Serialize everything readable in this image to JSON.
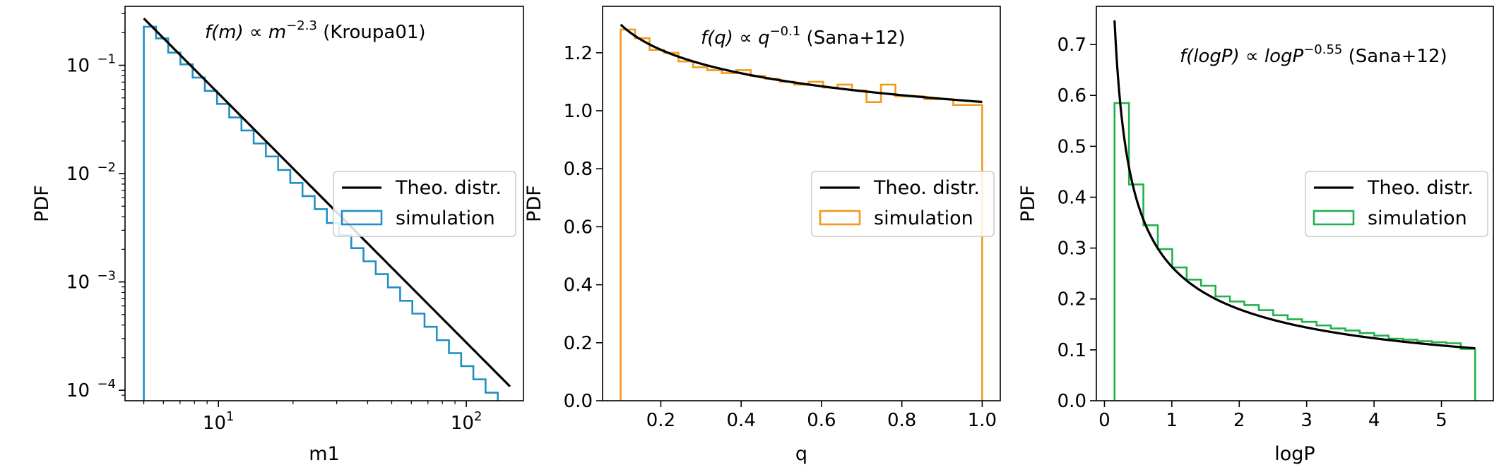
{
  "colors": {
    "theory": "#000000",
    "sim1": "#1f8fc4",
    "sim2": "#f39a1c",
    "sim3": "#22b14c"
  },
  "chart_data": [
    {
      "type": "line",
      "panel": "left",
      "title": "",
      "annotation": {
        "func": "f(m)",
        "prop": " ∝ ",
        "base": "m",
        "exp": "−2.3",
        "tail": " (Kroupa01)"
      },
      "xlabel": "m1",
      "ylabel": "PDF",
      "xscale": "log",
      "yscale": "log",
      "xlim": [
        4.2,
        170
      ],
      "ylim": [
        8e-05,
        0.35
      ],
      "xticks": [
        {
          "value": 10,
          "base": "10",
          "exp": "1"
        },
        {
          "value": 100,
          "base": "10",
          "exp": "2"
        }
      ],
      "yticks": [
        {
          "value": 0.1,
          "base": "10",
          "exp": "−1"
        },
        {
          "value": 0.01,
          "base": "10",
          "exp": "−2"
        },
        {
          "value": 0.001,
          "base": "10",
          "exp": "−3"
        },
        {
          "value": 0.0001,
          "base": "10",
          "exp": "−4"
        }
      ],
      "legend": {
        "placement": "center-right",
        "entries": [
          "Theo. distr.",
          "simulation"
        ]
      },
      "series": [
        {
          "name": "Theo. distr.",
          "kind": "power_law",
          "coef": 10.97,
          "exponent": -2.3,
          "x_range": [
            5,
            150
          ]
        },
        {
          "name": "simulation",
          "kind": "step_histogram",
          "bins": 30,
          "x_range": [
            5,
            150
          ],
          "bin_scale": "log",
          "values": [
            0.227,
            0.177,
            0.131,
            0.102,
            0.077,
            0.058,
            0.044,
            0.033,
            0.025,
            0.019,
            0.0144,
            0.0108,
            0.0082,
            0.0062,
            0.0047,
            0.0035,
            0.0027,
            0.00205,
            0.00155,
            0.00118,
            0.00089,
            0.00067,
            0.00051,
            0.000385,
            0.00029,
            0.00022,
            0.000167,
            0.000126,
            9.5e-05,
            7.2e-05
          ]
        }
      ]
    },
    {
      "type": "line",
      "panel": "middle",
      "title": "",
      "annotation": {
        "func": "f(q)",
        "prop": " ∝ ",
        "base": "q",
        "exp": "−0.1",
        "tail": " (Sana+12)"
      },
      "xlabel": "q",
      "ylabel": "PDF",
      "xscale": "linear",
      "yscale": "linear",
      "xlim": [
        0.055,
        1.045
      ],
      "ylim": [
        0,
        1.36
      ],
      "xticks": [
        "0.2",
        "0.4",
        "0.6",
        "0.8",
        "1.0"
      ],
      "yticks": [
        "0.0",
        "0.2",
        "0.4",
        "0.6",
        "0.8",
        "1.0",
        "1.2"
      ],
      "legend": {
        "placement": "center-right",
        "entries": [
          "Theo. distr.",
          "simulation"
        ]
      },
      "series": [
        {
          "name": "Theo. distr.",
          "kind": "power_law",
          "coef": 1.0304,
          "exponent": -0.1,
          "x_range": [
            0.1,
            1.0
          ]
        },
        {
          "name": "simulation",
          "kind": "step_histogram",
          "bins": 25,
          "x_range": [
            0.1,
            1.0
          ],
          "bin_scale": "linear",
          "values": [
            1.28,
            1.25,
            1.21,
            1.2,
            1.17,
            1.15,
            1.14,
            1.13,
            1.14,
            1.12,
            1.11,
            1.1,
            1.09,
            1.1,
            1.08,
            1.09,
            1.07,
            1.03,
            1.09,
            1.05,
            1.05,
            1.04,
            1.04,
            1.02,
            1.02
          ]
        }
      ]
    },
    {
      "type": "line",
      "panel": "right",
      "title": "",
      "annotation": {
        "func": "f(logP)",
        "prop": " ∝ ",
        "base": "logP",
        "exp": "−0.55",
        "tail": " (Sana+12)"
      },
      "xlabel": "logP",
      "ylabel": "PDF",
      "xscale": "linear",
      "yscale": "linear",
      "xlim": [
        -0.12,
        5.77
      ],
      "ylim": [
        0,
        0.775
      ],
      "xticks": [
        "0",
        "1",
        "2",
        "3",
        "4",
        "5"
      ],
      "yticks": [
        "0.0",
        "0.1",
        "0.2",
        "0.3",
        "0.4",
        "0.5",
        "0.6",
        "0.7"
      ],
      "legend": {
        "placement": "center-right",
        "entries": [
          "Theo. distr.",
          "simulation"
        ]
      },
      "series": [
        {
          "name": "Theo. distr.",
          "kind": "power_law",
          "coef": 0.2633,
          "exponent": -0.55,
          "x_range": [
            0.15,
            5.5
          ]
        },
        {
          "name": "simulation",
          "kind": "step_histogram",
          "bins": 25,
          "x_range": [
            0.15,
            5.5
          ],
          "bin_scale": "linear",
          "values": [
            0.585,
            0.425,
            0.345,
            0.298,
            0.262,
            0.238,
            0.226,
            0.205,
            0.195,
            0.188,
            0.178,
            0.168,
            0.16,
            0.155,
            0.148,
            0.142,
            0.138,
            0.133,
            0.128,
            0.122,
            0.12,
            0.117,
            0.115,
            0.113,
            0.102
          ]
        }
      ]
    }
  ]
}
